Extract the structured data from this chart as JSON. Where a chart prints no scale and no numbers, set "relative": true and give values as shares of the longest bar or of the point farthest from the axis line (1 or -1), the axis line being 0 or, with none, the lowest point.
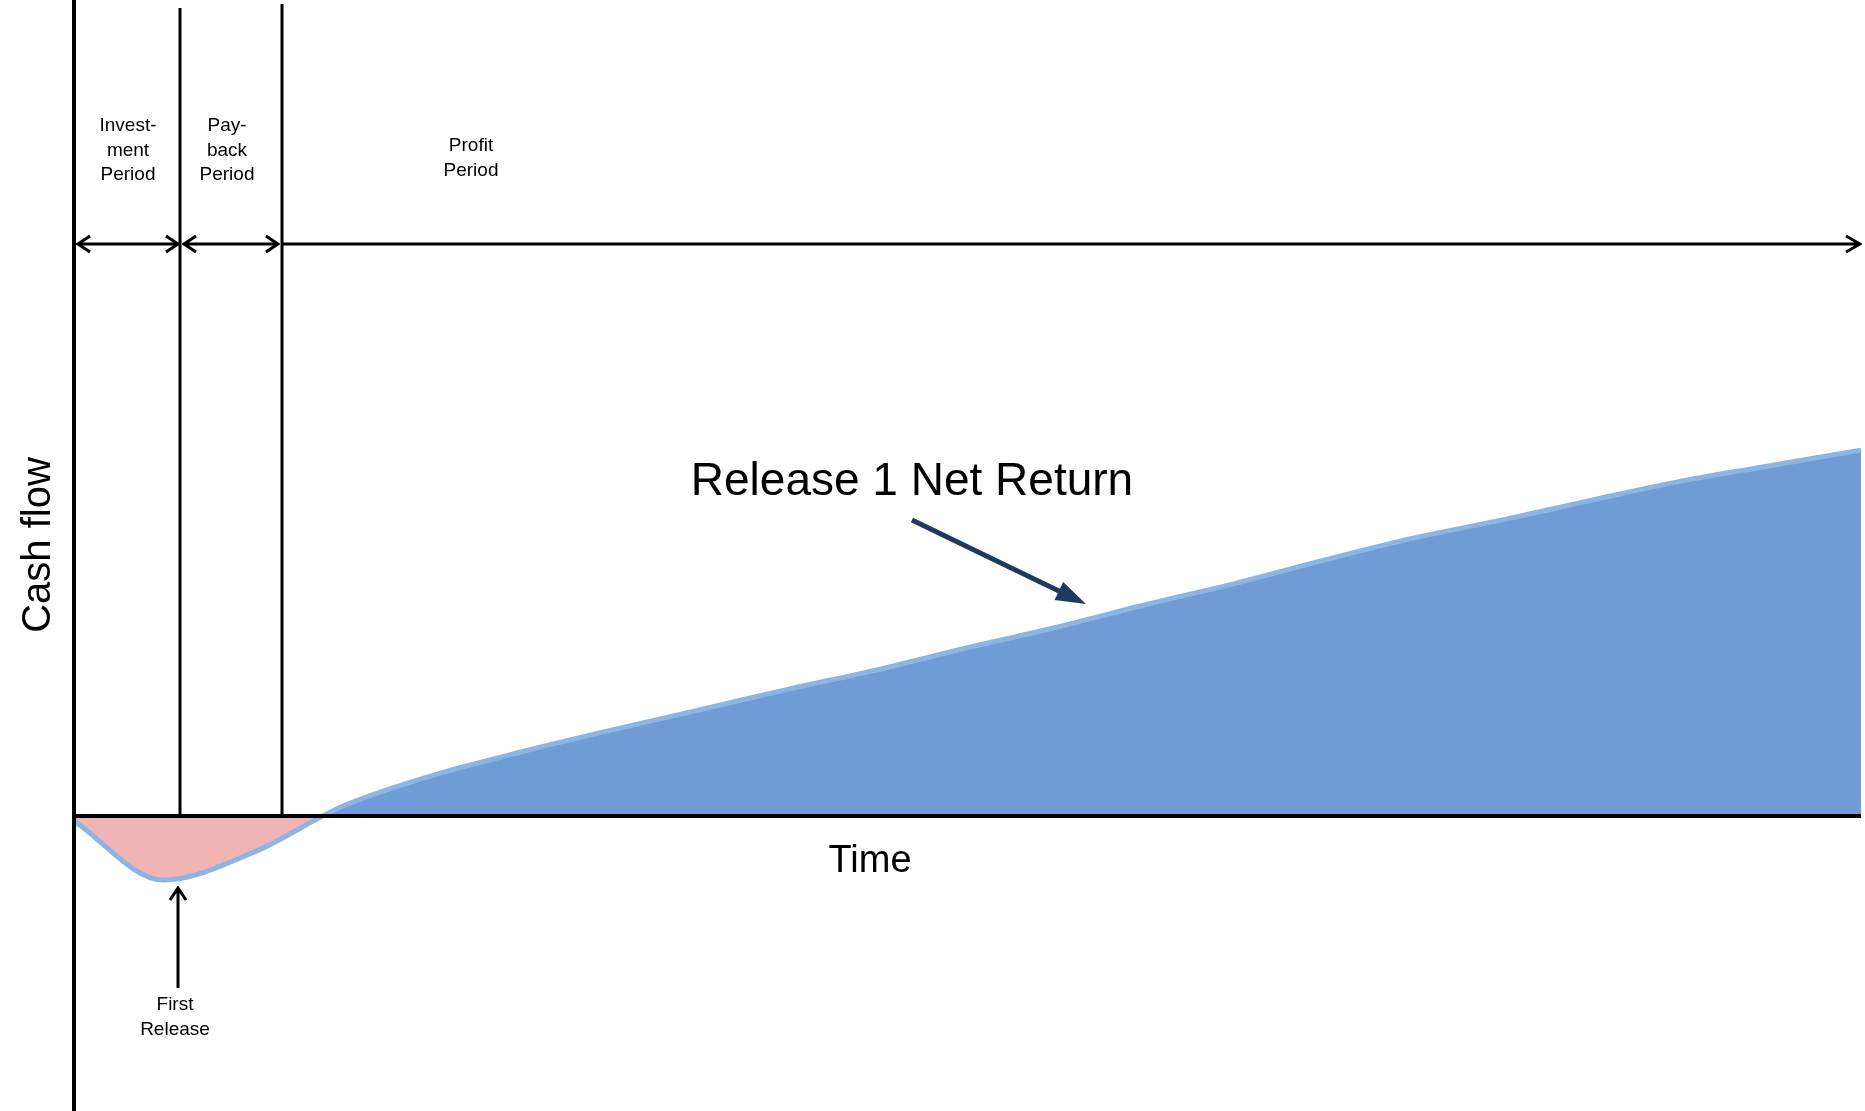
{
  "chart_data": {
    "type": "area",
    "relative": true,
    "xlabel": "Time",
    "ylabel": "Cash flow",
    "categories": [
      null,
      null,
      null,
      null,
      null,
      null,
      null,
      null,
      null,
      null,
      null,
      null,
      null,
      null,
      null,
      null,
      null,
      null,
      null,
      null,
      null
    ],
    "series": [
      {
        "color": "#6f9bd6",
        "values": [
          -0.013,
          -0.175,
          -0.1,
          0.026,
          0.11,
          0.175,
          0.234,
          0.29,
          0.347,
          0.4,
          0.46,
          0.516,
          0.578,
          0.636,
          0.7,
          0.76,
          0.81,
          0.864,
          0.916,
          0.958,
          1
        ]
      }
    ],
    "annotations": [
      "Invest-\nment\nPeriod",
      "Pay-\nback\nPeriod",
      "Profit\nPeriod",
      "Release 1 Net Return",
      "First\nRelease"
    ],
    "marker": "none"
  }
}
